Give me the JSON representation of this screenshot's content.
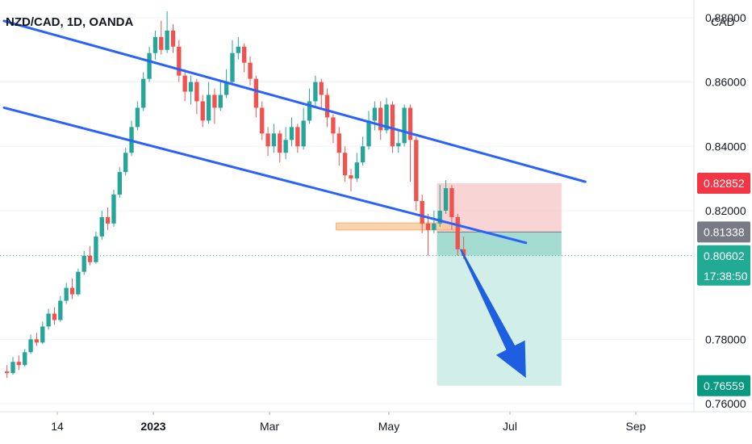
{
  "header": {
    "symbol_title": "NZD/CAD, 1D, OANDA"
  },
  "colors": {
    "up": "#26a69a",
    "down": "#ef5350",
    "channel": "#2962ff",
    "stop_zone": "#f7c5c7",
    "target_zone": "#c9ebe4",
    "entry_zone": "#8fd3c7",
    "stop_badge": "#f23645",
    "entry_badge": "#787b86",
    "current_badge": "#22ab94",
    "target_badge": "#089981",
    "resistance_box": "#f9cba0",
    "grid": "#f0f3fa"
  },
  "chart_data": {
    "type": "candlestick",
    "title": "NZD/CAD, 1D, OANDA",
    "y_axis": {
      "unit_label": "CAD",
      "range": [
        0.7575,
        0.8855
      ],
      "ticks": [
        "0.88000",
        "0.86000",
        "0.84000",
        "0.82000",
        "0.78000",
        "0.76000"
      ]
    },
    "x_axis": {
      "ticks": [
        "14",
        "2023",
        "Mar",
        "May",
        "Jul",
        "Sep"
      ]
    },
    "price_labels": {
      "stop_loss": "0.82852",
      "entry": "0.81338",
      "current": "0.80602",
      "countdown": "17:38:50",
      "target": "0.76559"
    },
    "channel": {
      "upper": [
        [
          0,
          0.879
        ],
        [
          98,
          0.829
        ]
      ],
      "lower": [
        [
          0,
          0.852
        ],
        [
          88,
          0.81
        ]
      ]
    },
    "resistance_zone": {
      "from_bar": 56,
      "to_bar": 77,
      "top": 0.8162,
      "bottom": 0.814
    },
    "position": {
      "type": "short",
      "from_bar": 73,
      "to_bar": 94,
      "stop_loss": 0.82852,
      "entry": 0.81338,
      "target": 0.76559
    },
    "arrow": {
      "from": [
        77,
        0.808
      ],
      "to": [
        88,
        0.768
      ]
    },
    "candles": [
      [
        0.77,
        0.7695,
        0.772,
        0.768
      ],
      [
        0.7695,
        0.773,
        0.7745,
        0.769
      ],
      [
        0.773,
        0.772,
        0.775,
        0.7705
      ],
      [
        0.772,
        0.776,
        0.777,
        0.7715
      ],
      [
        0.776,
        0.78,
        0.7815,
        0.7755
      ],
      [
        0.78,
        0.779,
        0.782,
        0.778
      ],
      [
        0.779,
        0.784,
        0.7855,
        0.7785
      ],
      [
        0.784,
        0.788,
        0.7895,
        0.783
      ],
      [
        0.788,
        0.786,
        0.79,
        0.7845
      ],
      [
        0.786,
        0.792,
        0.7935,
        0.7855
      ],
      [
        0.792,
        0.796,
        0.7975,
        0.791
      ],
      [
        0.796,
        0.794,
        0.799,
        0.7925
      ],
      [
        0.794,
        0.801,
        0.802,
        0.7935
      ],
      [
        0.801,
        0.806,
        0.8075,
        0.8
      ],
      [
        0.806,
        0.804,
        0.809,
        0.803
      ],
      [
        0.804,
        0.812,
        0.8135,
        0.8035
      ],
      [
        0.812,
        0.818,
        0.82,
        0.811
      ],
      [
        0.818,
        0.816,
        0.821,
        0.814
      ],
      [
        0.816,
        0.825,
        0.8265,
        0.815
      ],
      [
        0.825,
        0.832,
        0.8335,
        0.824
      ],
      [
        0.832,
        0.838,
        0.8395,
        0.831
      ],
      [
        0.838,
        0.846,
        0.848,
        0.837
      ],
      [
        0.846,
        0.852,
        0.854,
        0.845
      ],
      [
        0.852,
        0.861,
        0.863,
        0.851
      ],
      [
        0.861,
        0.869,
        0.871,
        0.86
      ],
      [
        0.869,
        0.874,
        0.876,
        0.867
      ],
      [
        0.874,
        0.87,
        0.879,
        0.8685
      ],
      [
        0.87,
        0.876,
        0.882,
        0.869
      ],
      [
        0.876,
        0.871,
        0.878,
        0.869
      ],
      [
        0.871,
        0.862,
        0.873,
        0.86
      ],
      [
        0.862,
        0.857,
        0.864,
        0.854
      ],
      [
        0.857,
        0.86,
        0.862,
        0.853
      ],
      [
        0.86,
        0.854,
        0.861,
        0.85
      ],
      [
        0.854,
        0.848,
        0.856,
        0.846
      ],
      [
        0.848,
        0.856,
        0.86,
        0.847
      ],
      [
        0.856,
        0.852,
        0.858,
        0.847
      ],
      [
        0.852,
        0.856,
        0.86,
        0.851
      ],
      [
        0.856,
        0.86,
        0.864,
        0.855
      ],
      [
        0.86,
        0.869,
        0.873,
        0.859
      ],
      [
        0.869,
        0.871,
        0.874,
        0.867
      ],
      [
        0.871,
        0.866,
        0.872,
        0.863
      ],
      [
        0.866,
        0.861,
        0.868,
        0.859
      ],
      [
        0.861,
        0.852,
        0.862,
        0.849
      ],
      [
        0.852,
        0.844,
        0.854,
        0.842
      ],
      [
        0.844,
        0.84,
        0.846,
        0.837
      ],
      [
        0.84,
        0.844,
        0.847,
        0.838
      ],
      [
        0.844,
        0.838,
        0.845,
        0.835
      ],
      [
        0.838,
        0.842,
        0.846,
        0.836
      ],
      [
        0.842,
        0.846,
        0.849,
        0.84
      ],
      [
        0.846,
        0.84,
        0.847,
        0.838
      ],
      [
        0.84,
        0.848,
        0.852,
        0.839
      ],
      [
        0.848,
        0.854,
        0.858,
        0.847
      ],
      [
        0.854,
        0.86,
        0.862,
        0.852
      ],
      [
        0.86,
        0.856,
        0.861,
        0.852
      ],
      [
        0.856,
        0.849,
        0.858,
        0.846
      ],
      [
        0.849,
        0.844,
        0.85,
        0.841
      ],
      [
        0.844,
        0.838,
        0.846,
        0.834
      ],
      [
        0.838,
        0.831,
        0.84,
        0.829
      ],
      [
        0.831,
        0.83,
        0.833,
        0.826
      ],
      [
        0.83,
        0.835,
        0.838,
        0.829
      ],
      [
        0.835,
        0.84,
        0.843,
        0.834
      ],
      [
        0.84,
        0.848,
        0.851,
        0.839
      ],
      [
        0.848,
        0.852,
        0.854,
        0.845
      ],
      [
        0.852,
        0.845,
        0.854,
        0.842
      ],
      [
        0.845,
        0.853,
        0.855,
        0.844
      ],
      [
        0.853,
        0.84,
        0.854,
        0.838
      ],
      [
        0.84,
        0.841,
        0.845,
        0.838
      ],
      [
        0.841,
        0.852,
        0.853,
        0.84
      ],
      [
        0.852,
        0.842,
        0.853,
        0.829
      ],
      [
        0.842,
        0.823,
        0.843,
        0.82
      ],
      [
        0.823,
        0.816,
        0.825,
        0.813
      ],
      [
        0.816,
        0.814,
        0.819,
        0.806
      ],
      [
        0.814,
        0.816,
        0.82,
        0.813
      ],
      [
        0.816,
        0.82,
        0.828,
        0.815
      ],
      [
        0.82,
        0.827,
        0.8295,
        0.819
      ],
      [
        0.827,
        0.818,
        0.828,
        0.814
      ],
      [
        0.818,
        0.808,
        0.819,
        0.806
      ],
      [
        0.808,
        0.806,
        0.812,
        0.805
      ]
    ]
  }
}
